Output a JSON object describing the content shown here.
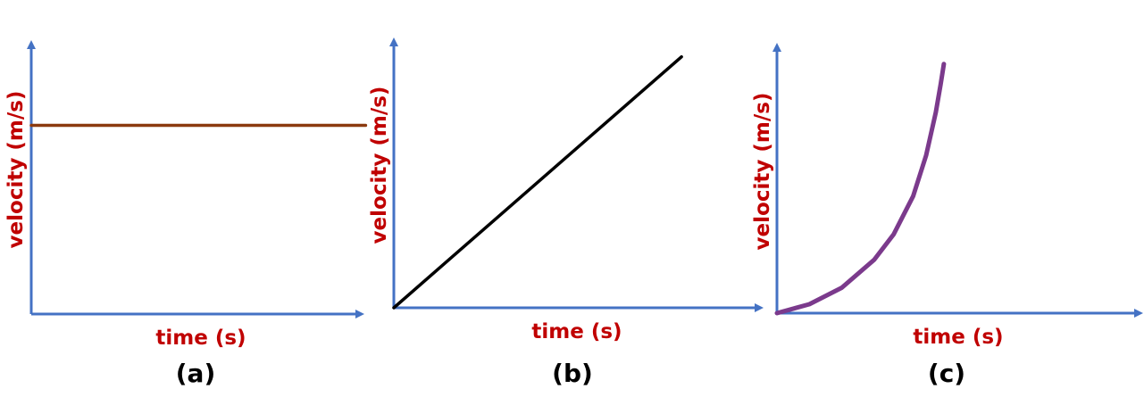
{
  "colors": {
    "axis": "#4472C4",
    "label": "#C00000"
  },
  "chart_data": [
    {
      "type": "line",
      "panel_label": "(a)",
      "xlabel": "time (s)",
      "ylabel": "velocity (m/s)",
      "xlim": [
        0,
        10
      ],
      "ylim": [
        0,
        10
      ],
      "grid": false,
      "series": [
        {
          "color": "#8B3A0F",
          "x": [
            0,
            9.36
          ],
          "y": [
            7.05,
            7.05
          ]
        }
      ]
    },
    {
      "type": "line",
      "panel_label": "(b)",
      "xlabel": "time (s)",
      "ylabel": "velocity (m/s)",
      "xlim": [
        0,
        10
      ],
      "ylim": [
        0,
        10
      ],
      "grid": false,
      "series": [
        {
          "color": "#000000",
          "x": [
            0,
            7.8
          ],
          "y": [
            0,
            9.8
          ]
        }
      ]
    },
    {
      "type": "line",
      "panel_label": "(c)",
      "xlabel": "time (s)",
      "ylabel": "velocity (m/s)",
      "xlim": [
        0,
        10
      ],
      "ylim": [
        0,
        10
      ],
      "grid": false,
      "series": [
        {
          "color": "#7B3A8C",
          "x": [
            0,
            1,
            2,
            3,
            3.6,
            4.2,
            4.6,
            4.9,
            5.05,
            5.15
          ],
          "y": [
            0,
            0.35,
            1.0,
            2.1,
            3.1,
            4.6,
            6.2,
            7.9,
            9.0,
            9.8
          ]
        }
      ]
    }
  ]
}
